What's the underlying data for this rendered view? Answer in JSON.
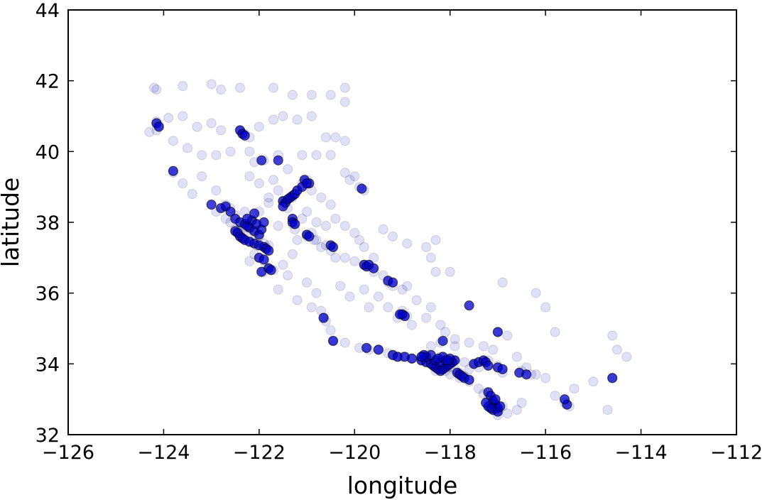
{
  "chart_data": {
    "type": "scatter",
    "xlabel": "longitude",
    "ylabel": "latitude",
    "xlim": [
      -126,
      -112
    ],
    "ylim": [
      32,
      44
    ],
    "xticks": [
      "−126",
      "−124",
      "−122",
      "−120",
      "−118",
      "−116",
      "−114",
      "−112"
    ],
    "yticks": [
      "32",
      "34",
      "36",
      "38",
      "40",
      "42",
      "44"
    ],
    "grid": false,
    "marker_color": "#0000cc",
    "marker_alpha": 0.12,
    "points": [
      [
        -124.2,
        41.8
      ],
      [
        -124.15,
        41.75
      ],
      [
        -123.6,
        41.85
      ],
      [
        -123.0,
        41.9
      ],
      [
        -122.8,
        41.75
      ],
      [
        -122.4,
        41.8
      ],
      [
        -121.7,
        41.8
      ],
      [
        -121.3,
        41.6
      ],
      [
        -120.9,
        41.6
      ],
      [
        -120.5,
        41.6
      ],
      [
        -120.2,
        41.8
      ],
      [
        -120.2,
        41.4
      ],
      [
        -124.15,
        40.85
      ],
      [
        -124.1,
        40.75
      ],
      [
        -124.15,
        40.6
      ],
      [
        -124.3,
        40.55
      ],
      [
        -123.9,
        40.95
      ],
      [
        -123.6,
        41.0
      ],
      [
        -123.3,
        40.7
      ],
      [
        -123.0,
        40.8
      ],
      [
        -122.8,
        40.6
      ],
      [
        -122.4,
        40.6
      ],
      [
        -122.3,
        40.5
      ],
      [
        -122.2,
        40.4
      ],
      [
        -122.0,
        40.7
      ],
      [
        -121.7,
        40.9
      ],
      [
        -121.5,
        41.0
      ],
      [
        -121.2,
        40.9
      ],
      [
        -120.9,
        41.0
      ],
      [
        -120.6,
        40.4
      ],
      [
        -120.4,
        40.4
      ],
      [
        -120.2,
        40.3
      ],
      [
        -123.8,
        40.3
      ],
      [
        -123.5,
        40.1
      ],
      [
        -123.2,
        39.9
      ],
      [
        -122.9,
        39.9
      ],
      [
        -122.6,
        40.0
      ],
      [
        -122.2,
        40.0
      ],
      [
        -122.1,
        39.7
      ],
      [
        -121.9,
        39.75
      ],
      [
        -121.6,
        39.9
      ],
      [
        -121.4,
        39.5
      ],
      [
        -121.1,
        39.9
      ],
      [
        -120.8,
        39.9
      ],
      [
        -120.5,
        39.9
      ],
      [
        -120.2,
        39.4
      ],
      [
        -120.0,
        39.3
      ],
      [
        -119.9,
        39.0
      ],
      [
        -119.8,
        38.9
      ],
      [
        -120.1,
        39.2
      ],
      [
        -123.8,
        39.4
      ],
      [
        -123.6,
        39.1
      ],
      [
        -123.4,
        38.8
      ],
      [
        -123.2,
        39.3
      ],
      [
        -122.9,
        38.9
      ],
      [
        -122.7,
        38.5
      ],
      [
        -122.6,
        38.4
      ],
      [
        -122.5,
        38.2
      ],
      [
        -122.3,
        38.3
      ],
      [
        -122.2,
        38.05
      ],
      [
        -122.1,
        38.0
      ],
      [
        -122.0,
        38.3
      ],
      [
        -121.8,
        38.55
      ],
      [
        -121.5,
        38.6
      ],
      [
        -121.3,
        38.7
      ],
      [
        -121.2,
        38.9
      ],
      [
        -121.1,
        39.1
      ],
      [
        -121.0,
        39.2
      ],
      [
        -120.9,
        38.9
      ],
      [
        -120.7,
        38.7
      ],
      [
        -120.5,
        38.5
      ],
      [
        -120.4,
        38.1
      ],
      [
        -120.2,
        37.9
      ],
      [
        -120.0,
        37.7
      ],
      [
        -122.9,
        38.3
      ],
      [
        -122.7,
        38.1
      ],
      [
        -122.6,
        38.0
      ],
      [
        -122.5,
        37.8
      ],
      [
        -122.45,
        37.75
      ],
      [
        -122.4,
        37.7
      ],
      [
        -122.3,
        37.85
      ],
      [
        -122.2,
        37.8
      ],
      [
        -122.1,
        37.7
      ],
      [
        -122.0,
        37.6
      ],
      [
        -121.9,
        37.4
      ],
      [
        -121.85,
        37.3
      ],
      [
        -121.8,
        37.35
      ],
      [
        -122.05,
        37.35
      ],
      [
        -122.2,
        37.45
      ],
      [
        -122.3,
        37.55
      ],
      [
        -122.4,
        37.6
      ],
      [
        -122.1,
        37.1
      ],
      [
        -122.0,
        37.0
      ],
      [
        -121.9,
        36.9
      ],
      [
        -121.8,
        36.7
      ],
      [
        -121.7,
        36.65
      ],
      [
        -121.9,
        36.6
      ],
      [
        -121.5,
        36.8
      ],
      [
        -121.3,
        37.1
      ],
      [
        -121.2,
        37.5
      ],
      [
        -121.0,
        37.6
      ],
      [
        -120.9,
        37.7
      ],
      [
        -120.8,
        37.5
      ],
      [
        -120.6,
        37.35
      ],
      [
        -120.5,
        37.2
      ],
      [
        -120.4,
        37.0
      ],
      [
        -120.2,
        37.0
      ],
      [
        -120.0,
        36.9
      ],
      [
        -119.8,
        36.8
      ],
      [
        -119.7,
        36.75
      ],
      [
        -119.6,
        36.6
      ],
      [
        -119.4,
        36.5
      ],
      [
        -119.3,
        36.3
      ],
      [
        -119.2,
        36.2
      ],
      [
        -119.0,
        36.1
      ],
      [
        -118.9,
        36.2
      ],
      [
        -119.6,
        37.0
      ],
      [
        -119.8,
        37.3
      ],
      [
        -119.9,
        37.5
      ],
      [
        -119.4,
        37.8
      ],
      [
        -119.2,
        37.6
      ],
      [
        -118.9,
        37.4
      ],
      [
        -118.5,
        37.3
      ],
      [
        -118.3,
        37.5
      ],
      [
        -118.4,
        37.0
      ],
      [
        -118.3,
        36.6
      ],
      [
        -118.0,
        36.6
      ],
      [
        -121.6,
        36.1
      ],
      [
        -121.2,
        35.8
      ],
      [
        -120.9,
        35.6
      ],
      [
        -120.7,
        35.5
      ],
      [
        -120.65,
        35.3
      ],
      [
        -120.6,
        35.2
      ],
      [
        -120.5,
        34.95
      ],
      [
        -120.45,
        34.65
      ],
      [
        -120.2,
        34.6
      ],
      [
        -119.9,
        34.45
      ],
      [
        -119.7,
        34.4
      ],
      [
        -119.5,
        34.4
      ],
      [
        -119.3,
        34.3
      ],
      [
        -119.2,
        34.25
      ],
      [
        -119.1,
        34.2
      ],
      [
        -119.0,
        34.2
      ],
      [
        -118.8,
        34.15
      ],
      [
        -118.6,
        34.1
      ],
      [
        -118.5,
        34.05
      ],
      [
        -118.4,
        34.0
      ],
      [
        -118.3,
        34.05
      ],
      [
        -118.2,
        34.0
      ],
      [
        -118.1,
        33.95
      ],
      [
        -118.0,
        33.9
      ],
      [
        -117.9,
        33.85
      ],
      [
        -117.8,
        33.75
      ],
      [
        -117.7,
        33.65
      ],
      [
        -117.6,
        33.5
      ],
      [
        -117.4,
        33.3
      ],
      [
        -117.3,
        33.15
      ],
      [
        -117.2,
        33.0
      ],
      [
        -117.15,
        32.8
      ],
      [
        -117.1,
        32.75
      ],
      [
        -117.0,
        32.7
      ],
      [
        -116.9,
        32.8
      ],
      [
        -119.0,
        35.4
      ],
      [
        -118.9,
        35.35
      ],
      [
        -119.1,
        35.3
      ],
      [
        -118.8,
        35.1
      ],
      [
        -118.5,
        35.3
      ],
      [
        -118.2,
        35.1
      ],
      [
        -118.1,
        34.9
      ],
      [
        -117.9,
        34.7
      ],
      [
        -117.6,
        34.6
      ],
      [
        -117.3,
        34.5
      ],
      [
        -117.1,
        34.4
      ],
      [
        -117.0,
        34.9
      ],
      [
        -116.8,
        34.8
      ],
      [
        -116.6,
        34.2
      ],
      [
        -116.4,
        33.9
      ],
      [
        -116.2,
        33.7
      ],
      [
        -116.0,
        33.6
      ],
      [
        -115.8,
        33.1
      ],
      [
        -115.6,
        32.9
      ],
      [
        -115.5,
        32.8
      ],
      [
        -115.4,
        33.3
      ],
      [
        -115.0,
        33.5
      ],
      [
        -114.6,
        33.6
      ],
      [
        -114.6,
        34.8
      ],
      [
        -114.5,
        34.4
      ],
      [
        -114.3,
        34.2
      ],
      [
        -114.7,
        32.7
      ],
      [
        -116.9,
        36.3
      ],
      [
        -116.2,
        36.0
      ],
      [
        -116.0,
        35.6
      ],
      [
        -115.8,
        34.9
      ],
      [
        -118.3,
        33.8
      ],
      [
        -118.2,
        33.85
      ],
      [
        -118.1,
        33.8
      ],
      [
        -118.0,
        33.7
      ],
      [
        -117.8,
        33.6
      ],
      [
        -117.9,
        34.1
      ],
      [
        -117.7,
        34.05
      ],
      [
        -117.5,
        34.0
      ],
      [
        -117.3,
        34.05
      ],
      [
        -117.2,
        34.1
      ],
      [
        -117.0,
        33.95
      ],
      [
        -116.9,
        33.75
      ],
      [
        -116.5,
        33.8
      ],
      [
        -116.3,
        33.7
      ],
      [
        -117.4,
        33.9
      ],
      [
        -117.6,
        33.85
      ],
      [
        -118.6,
        34.2
      ],
      [
        -118.5,
        34.25
      ],
      [
        -118.2,
        34.2
      ],
      [
        -118.1,
        34.15
      ],
      [
        -118.4,
        34.5
      ],
      [
        -118.2,
        34.6
      ],
      [
        -117.9,
        34.5
      ],
      [
        -116.6,
        32.7
      ],
      [
        -116.8,
        32.6
      ],
      [
        -117.0,
        32.55
      ],
      [
        -116.5,
        32.9
      ],
      [
        -122.2,
        39.3
      ],
      [
        -122.0,
        39.1
      ],
      [
        -121.7,
        39.2
      ],
      [
        -121.6,
        38.9
      ],
      [
        -121.8,
        38.7
      ],
      [
        -121.4,
        38.4
      ],
      [
        -121.1,
        38.1
      ],
      [
        -121.0,
        38.3
      ],
      [
        -120.8,
        38.0
      ],
      [
        -120.6,
        37.9
      ],
      [
        -121.3,
        37.95
      ],
      [
        -121.25,
        37.8
      ],
      [
        -121.0,
        37.65
      ],
      [
        -120.85,
        37.5
      ],
      [
        -120.7,
        37.3
      ],
      [
        -121.6,
        37.9
      ],
      [
        -122.2,
        36.9
      ],
      [
        -121.4,
        36.5
      ],
      [
        -121.0,
        36.3
      ],
      [
        -120.8,
        36.0
      ],
      [
        -120.3,
        36.2
      ],
      [
        -120.1,
        35.9
      ],
      [
        -119.7,
        35.6
      ],
      [
        -119.3,
        35.6
      ],
      [
        -119.0,
        35.5
      ],
      [
        -118.7,
        35.8
      ],
      [
        -118.4,
        35.6
      ],
      [
        -119.8,
        36.1
      ],
      [
        -119.5,
        35.9
      ]
    ],
    "dense_points": [
      [
        -124.15,
        40.8
      ],
      [
        -124.1,
        40.7
      ],
      [
        -123.8,
        39.45
      ],
      [
        -122.4,
        40.6
      ],
      [
        -122.35,
        40.5
      ],
      [
        -122.3,
        40.45
      ],
      [
        -121.95,
        39.75
      ],
      [
        -121.6,
        39.75
      ],
      [
        -121.05,
        39.2
      ],
      [
        -120.95,
        39.1
      ],
      [
        -119.85,
        38.95
      ],
      [
        -123.0,
        38.5
      ],
      [
        -122.8,
        38.4
      ],
      [
        -122.7,
        38.45
      ],
      [
        -122.6,
        38.3
      ],
      [
        -122.5,
        38.1
      ],
      [
        -122.4,
        38.0
      ],
      [
        -122.3,
        37.95
      ],
      [
        -122.2,
        37.85
      ],
      [
        -122.1,
        37.75
      ],
      [
        -122.0,
        37.65
      ],
      [
        -122.5,
        37.75
      ],
      [
        -122.45,
        37.7
      ],
      [
        -122.4,
        37.6
      ],
      [
        -122.35,
        37.55
      ],
      [
        -122.3,
        37.5
      ],
      [
        -122.2,
        37.45
      ],
      [
        -122.1,
        37.4
      ],
      [
        -122.0,
        37.35
      ],
      [
        -121.9,
        37.3
      ],
      [
        -121.85,
        37.25
      ],
      [
        -121.8,
        37.2
      ],
      [
        -122.0,
        37.0
      ],
      [
        -121.9,
        36.95
      ],
      [
        -121.8,
        36.7
      ],
      [
        -121.75,
        36.65
      ],
      [
        -121.95,
        36.6
      ],
      [
        -122.25,
        37.9
      ],
      [
        -122.15,
        38.05
      ],
      [
        -122.05,
        37.95
      ],
      [
        -121.95,
        37.8
      ],
      [
        -121.9,
        38.0
      ],
      [
        -122.1,
        38.25
      ],
      [
        -122.25,
        38.1
      ],
      [
        -121.5,
        38.6
      ],
      [
        -121.45,
        38.55
      ],
      [
        -121.4,
        38.65
      ],
      [
        -121.35,
        38.7
      ],
      [
        -121.3,
        38.75
      ],
      [
        -121.25,
        38.8
      ],
      [
        -121.2,
        38.9
      ],
      [
        -121.1,
        39.0
      ],
      [
        -121.0,
        39.1
      ],
      [
        -121.5,
        38.45
      ],
      [
        -121.3,
        38.1
      ],
      [
        -121.3,
        38.0
      ],
      [
        -121.25,
        37.95
      ],
      [
        -121.0,
        37.65
      ],
      [
        -120.95,
        37.6
      ],
      [
        -120.5,
        37.35
      ],
      [
        -120.45,
        37.3
      ],
      [
        -119.8,
        36.8
      ],
      [
        -119.75,
        36.75
      ],
      [
        -119.7,
        36.8
      ],
      [
        -119.6,
        36.7
      ],
      [
        -119.3,
        36.35
      ],
      [
        -119.2,
        36.3
      ],
      [
        -119.0,
        35.4
      ],
      [
        -118.95,
        35.35
      ],
      [
        -119.05,
        35.4
      ],
      [
        -120.65,
        35.3
      ],
      [
        -120.45,
        34.65
      ],
      [
        -119.75,
        34.45
      ],
      [
        -119.5,
        34.4
      ],
      [
        -119.2,
        34.25
      ],
      [
        -119.1,
        34.2
      ],
      [
        -118.95,
        34.2
      ],
      [
        -118.8,
        34.15
      ],
      [
        -118.6,
        34.1
      ],
      [
        -118.5,
        34.05
      ],
      [
        -118.4,
        34.0
      ],
      [
        -118.35,
        33.95
      ],
      [
        -118.3,
        33.9
      ],
      [
        -118.25,
        33.85
      ],
      [
        -118.2,
        33.8
      ],
      [
        -118.15,
        33.85
      ],
      [
        -118.1,
        33.9
      ],
      [
        -118.05,
        33.95
      ],
      [
        -118.0,
        34.0
      ],
      [
        -117.95,
        34.05
      ],
      [
        -117.9,
        34.1
      ],
      [
        -117.85,
        33.75
      ],
      [
        -117.8,
        33.7
      ],
      [
        -117.75,
        33.65
      ],
      [
        -117.7,
        33.6
      ],
      [
        -117.6,
        33.55
      ],
      [
        -117.5,
        34.0
      ],
      [
        -117.4,
        34.05
      ],
      [
        -117.3,
        34.1
      ],
      [
        -117.25,
        34.05
      ],
      [
        -117.2,
        33.95
      ],
      [
        -117.0,
        33.9
      ],
      [
        -116.9,
        33.85
      ],
      [
        -118.3,
        34.1
      ],
      [
        -118.2,
        34.05
      ],
      [
        -118.1,
        34.1
      ],
      [
        -118.0,
        34.15
      ],
      [
        -118.5,
        34.2
      ],
      [
        -118.4,
        34.25
      ],
      [
        -118.55,
        34.25
      ],
      [
        -118.6,
        34.2
      ],
      [
        -118.25,
        34.15
      ],
      [
        -118.15,
        34.2
      ],
      [
        -118.05,
        34.1
      ],
      [
        -117.2,
        33.2
      ],
      [
        -117.15,
        33.1
      ],
      [
        -117.1,
        32.95
      ],
      [
        -117.05,
        32.85
      ],
      [
        -117.0,
        32.75
      ],
      [
        -117.1,
        32.7
      ],
      [
        -117.15,
        32.75
      ],
      [
        -117.2,
        32.8
      ],
      [
        -117.25,
        32.9
      ],
      [
        -117.0,
        32.65
      ],
      [
        -116.95,
        32.8
      ],
      [
        -117.05,
        33.0
      ],
      [
        -115.55,
        32.85
      ],
      [
        -115.6,
        33.0
      ],
      [
        -114.6,
        33.6
      ],
      [
        -116.55,
        33.75
      ],
      [
        -116.4,
        33.7
      ],
      [
        -117.6,
        35.65
      ],
      [
        -117.0,
        34.9
      ],
      [
        -118.15,
        34.65
      ]
    ]
  }
}
